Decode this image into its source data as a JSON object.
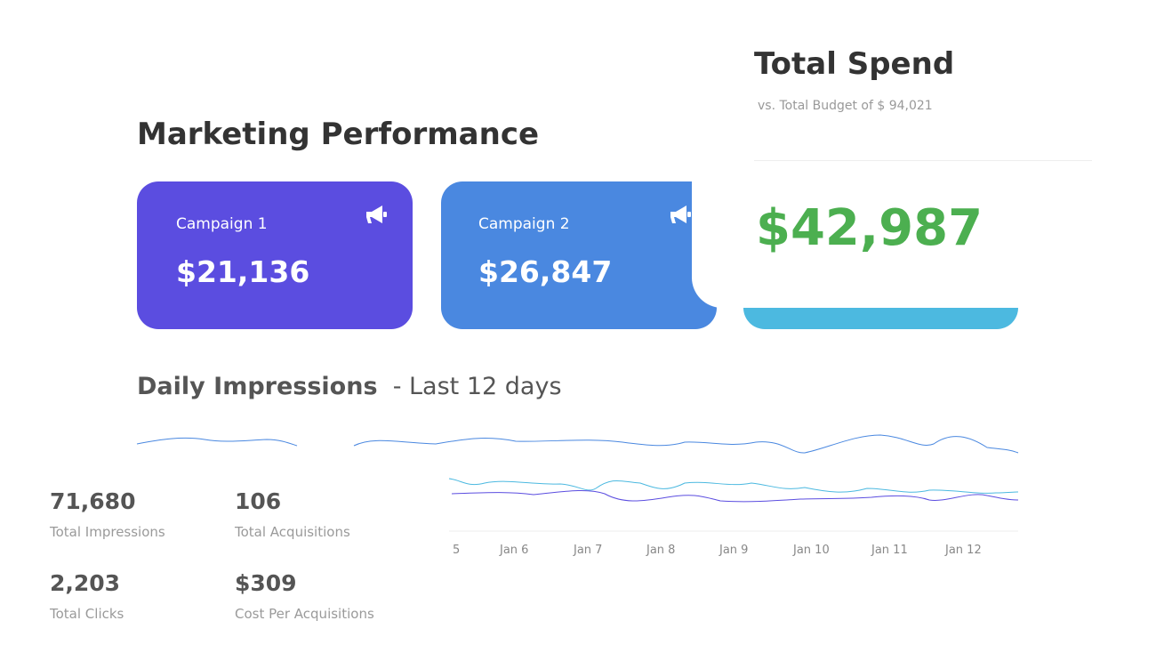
{
  "header": {
    "title": "Marketing Performance"
  },
  "campaigns": [
    {
      "label": "Campaign 1",
      "value": "$21,136"
    },
    {
      "label": "Campaign 2",
      "value": "$26,847"
    }
  ],
  "total_spend": {
    "title": "Total Spend",
    "subtitle": "vs. Total Budget of $ 94,021",
    "value": "$42,987"
  },
  "impressions": {
    "title": "Daily Impressions",
    "subtitle": "- Last 12 days",
    "x_labels": [
      "5",
      "Jan 6",
      "Jan 7",
      "Jan 8",
      "Jan 9",
      "Jan 10",
      "Jan 11",
      "Jan 12"
    ]
  },
  "stats": [
    {
      "value": "71,680",
      "label": "Total Impressions"
    },
    {
      "value": "106",
      "label": "Total Acquisitions"
    },
    {
      "value": "2,203",
      "label": "Total Clicks"
    },
    {
      "value": "$309",
      "label": "Cost Per Acquisitions"
    }
  ]
}
